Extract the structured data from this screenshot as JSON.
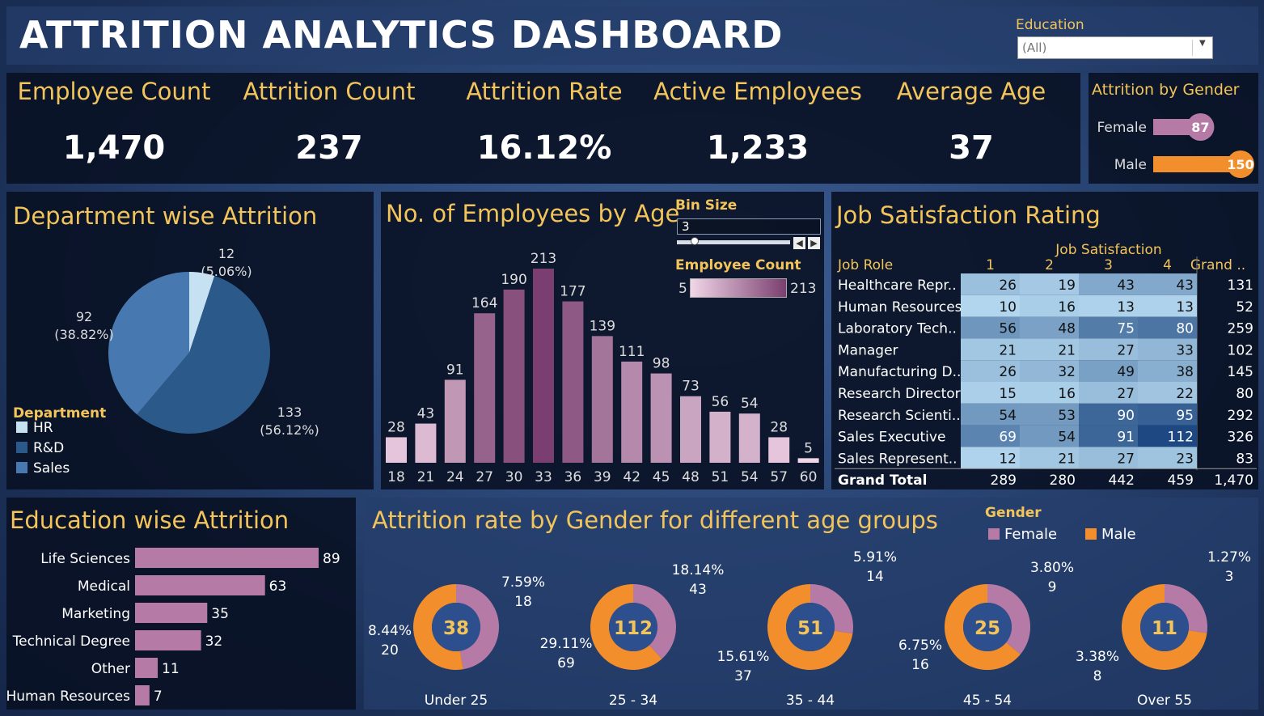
{
  "title": "ATTRITION ANALYTICS DASHBOARD",
  "filter": {
    "label": "Education",
    "value": "(All)"
  },
  "kpis": [
    {
      "label": "Employee Count",
      "value": "1,470"
    },
    {
      "label": "Attrition Count",
      "value": "237"
    },
    {
      "label": "Attrition Rate",
      "value": "16.12%"
    },
    {
      "label": "Active Employees",
      "value": "1,233"
    },
    {
      "label": "Average Age",
      "value": "37"
    }
  ],
  "colors": {
    "female": "#b67aa6",
    "male": "#f28e2b",
    "hr": "#c5e1f2",
    "rd": "#2b5a8a",
    "sales": "#4878b0",
    "bar": "#a4678f",
    "edu_bar": "#b67aa6",
    "ring_center": "#2e4f8e"
  },
  "chart_data": [
    {
      "id": "gender",
      "type": "bar",
      "title": "Attrition by Gender",
      "categories": [
        "Female",
        "Male"
      ],
      "values": [
        87,
        150
      ],
      "xlim": [
        0,
        150
      ]
    },
    {
      "id": "department",
      "type": "pie",
      "title": "Department wise Attrition",
      "legend_title": "Department",
      "legend_position": "bottom-left",
      "slices": [
        {
          "name": "HR",
          "value": 12,
          "pct": "(5.06%)"
        },
        {
          "name": "R&D",
          "value": 133,
          "pct": "(56.12%)"
        },
        {
          "name": "Sales",
          "value": 92,
          "pct": "(38.82%)"
        }
      ]
    },
    {
      "id": "age",
      "type": "bar",
      "title": "No. of Employees by Age",
      "categories": [
        "18",
        "21",
        "24",
        "27",
        "30",
        "33",
        "36",
        "39",
        "42",
        "45",
        "48",
        "51",
        "54",
        "57",
        "60"
      ],
      "values": [
        28,
        43,
        91,
        164,
        190,
        213,
        177,
        139,
        111,
        98,
        73,
        56,
        54,
        28,
        5
      ],
      "ylim": [
        0,
        213
      ],
      "bin_size": {
        "label": "Bin Size",
        "value": "3"
      },
      "color_legend": {
        "label": "Employee Count",
        "min": "5",
        "max": "213"
      }
    },
    {
      "id": "job_satisfaction",
      "type": "table",
      "title": "Job Satisfaction Rating",
      "column_group": "Job Satisfaction",
      "row_header": "Job Role",
      "columns": [
        "1",
        "2",
        "3",
        "4",
        "Grand .."
      ],
      "rows": [
        {
          "role": "Healthcare Repr..",
          "values": [
            26,
            19,
            43,
            43
          ],
          "total": "131"
        },
        {
          "role": "Human Resources",
          "values": [
            10,
            16,
            13,
            13
          ],
          "total": "52"
        },
        {
          "role": "Laboratory Tech..",
          "values": [
            56,
            48,
            75,
            80
          ],
          "total": "259"
        },
        {
          "role": "Manager",
          "values": [
            21,
            21,
            27,
            33
          ],
          "total": "102"
        },
        {
          "role": "Manufacturing D..",
          "values": [
            26,
            32,
            49,
            38
          ],
          "total": "145"
        },
        {
          "role": "Research Director",
          "values": [
            15,
            16,
            27,
            22
          ],
          "total": "80"
        },
        {
          "role": "Research Scienti..",
          "values": [
            54,
            53,
            90,
            95
          ],
          "total": "292"
        },
        {
          "role": "Sales Executive",
          "values": [
            69,
            54,
            91,
            112
          ],
          "total": "326"
        },
        {
          "role": "Sales Represent..",
          "values": [
            12,
            21,
            27,
            23
          ],
          "total": "83"
        }
      ],
      "grand_total": {
        "label": "Grand Total",
        "values": [
          "289",
          "280",
          "442",
          "459"
        ],
        "total": "1,470"
      }
    },
    {
      "id": "education",
      "type": "bar",
      "orientation": "horizontal",
      "title": "Education wise Attrition",
      "categories": [
        "Life Sciences",
        "Medical",
        "Marketing",
        "Technical Degree",
        "Other",
        "Human Resources"
      ],
      "values": [
        89,
        63,
        35,
        32,
        11,
        7
      ],
      "xlim": [
        0,
        89
      ]
    },
    {
      "id": "gender_age",
      "type": "pie",
      "subtype": "donut",
      "title": "Attrition rate by Gender for different age groups",
      "legend_title": "Gender",
      "legend_position": "top-right",
      "series_names": [
        "Female",
        "Male"
      ],
      "groups": [
        {
          "label": "Under 25",
          "total": "38",
          "female": {
            "pct": "7.59%",
            "count": 18
          },
          "male": {
            "pct": "8.44%",
            "count": 20
          }
        },
        {
          "label": "25 - 34",
          "total": "112",
          "female": {
            "pct": "18.14%",
            "count": 43
          },
          "male": {
            "pct": "29.11%",
            "count": 69
          }
        },
        {
          "label": "35 - 44",
          "total": "51",
          "female": {
            "pct": "5.91%",
            "count": 14
          },
          "male": {
            "pct": "15.61%",
            "count": 37
          }
        },
        {
          "label": "45 - 54",
          "total": "25",
          "female": {
            "pct": "3.80%",
            "count": 9
          },
          "male": {
            "pct": "6.75%",
            "count": 16
          }
        },
        {
          "label": "Over 55",
          "total": "11",
          "female": {
            "pct": "1.27%",
            "count": 3
          },
          "male": {
            "pct": "3.38%",
            "count": 8
          }
        }
      ]
    }
  ]
}
